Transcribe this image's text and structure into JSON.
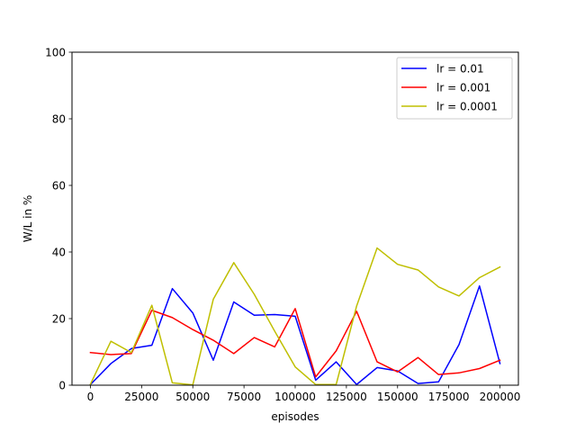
{
  "chart_data": {
    "type": "line",
    "xlabel": "episodes",
    "ylabel": "W/L in %",
    "xlim": [
      -9000,
      209000
    ],
    "ylim": [
      0,
      100
    ],
    "xticks": [
      0,
      25000,
      50000,
      75000,
      100000,
      125000,
      150000,
      175000,
      200000
    ],
    "yticks": [
      0,
      20,
      40,
      60,
      80,
      100
    ],
    "legend_position": "top-right",
    "grid": false,
    "x": [
      0,
      10000,
      20000,
      30000,
      40000,
      50000,
      60000,
      70000,
      80000,
      90000,
      100000,
      110000,
      120000,
      130000,
      140000,
      150000,
      160000,
      170000,
      180000,
      190000,
      200000
    ],
    "series": [
      {
        "name": "lr = 0.01",
        "color": "#0000ff",
        "values": [
          0.2,
          6.5,
          11,
          12,
          29,
          21.7,
          7.5,
          25,
          21,
          21.2,
          20.7,
          1.5,
          7,
          0.2,
          5.3,
          4.3,
          0.5,
          1,
          12.2,
          29.8,
          6.5
        ]
      },
      {
        "name": "lr = 0.001",
        "color": "#ff0000",
        "values": [
          9.8,
          9.2,
          9.5,
          22.5,
          20.3,
          16.7,
          13.5,
          9.5,
          14.3,
          11.5,
          23,
          2.5,
          10.3,
          22.2,
          7,
          4,
          8.3,
          3.2,
          3.7,
          5,
          7.5
        ]
      },
      {
        "name": "lr = 0.0001",
        "color": "#bfbf00",
        "values": [
          0.3,
          13.2,
          9.8,
          24,
          0.7,
          0.1,
          25.8,
          36.8,
          27.3,
          16.2,
          5.5,
          0.2,
          0.2,
          23.8,
          41.2,
          36.3,
          34.6,
          29.5,
          26.8,
          32.3,
          35.5
        ]
      }
    ]
  }
}
